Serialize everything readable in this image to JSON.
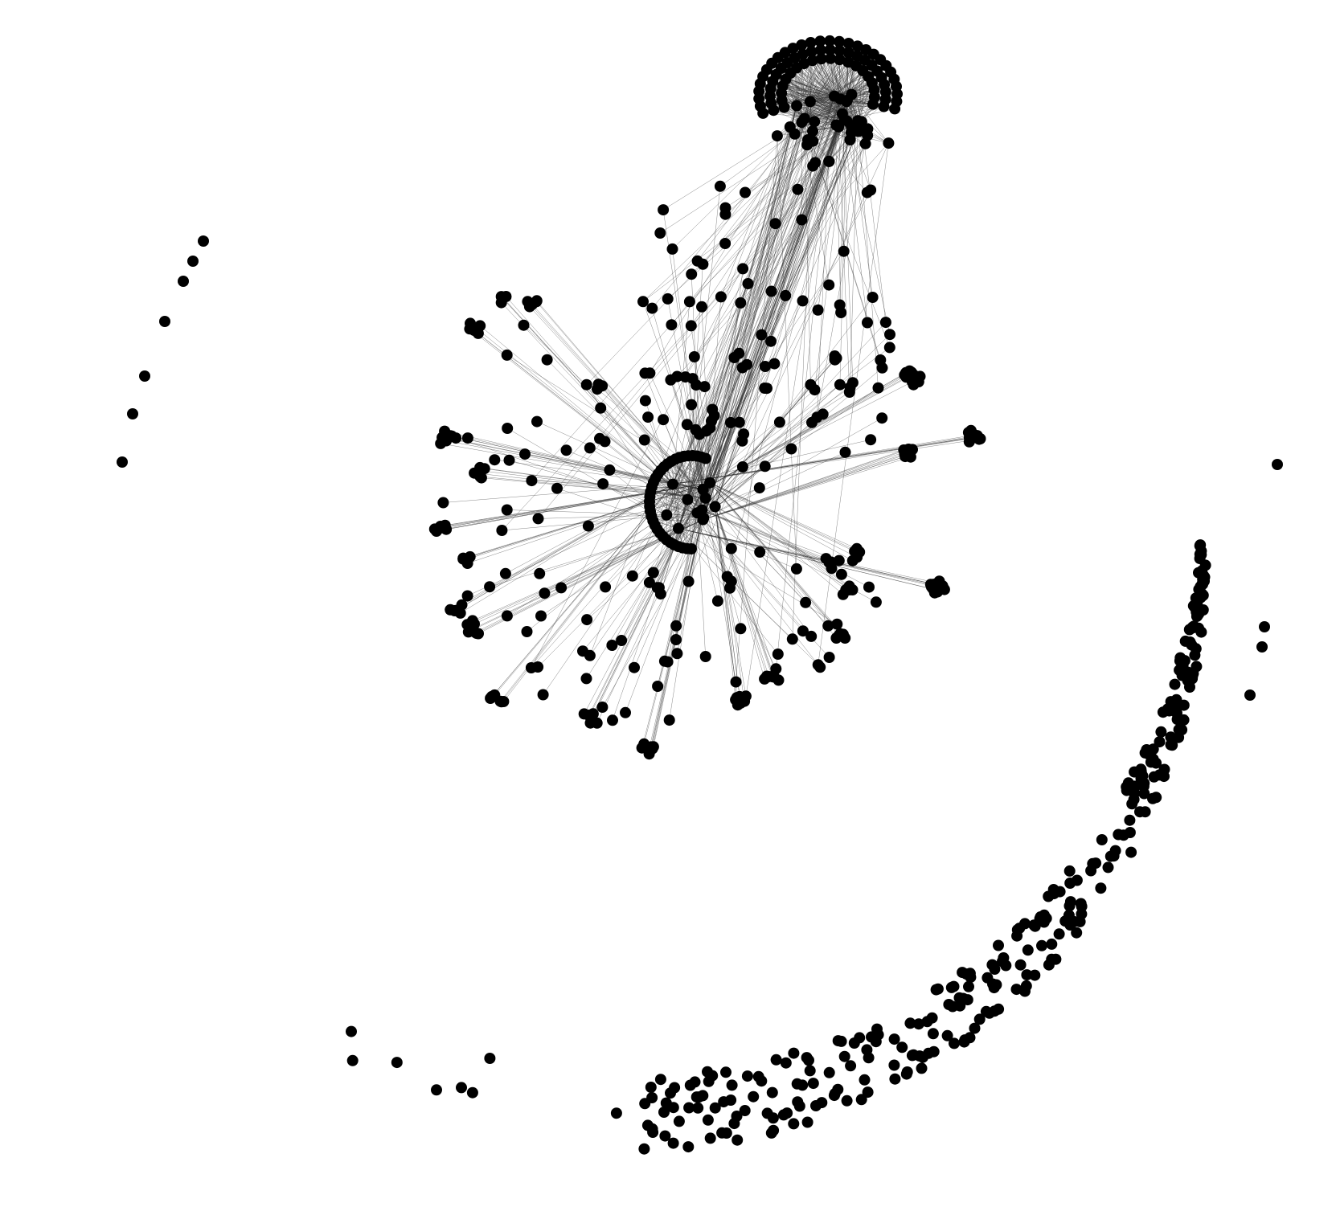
{
  "diagram": {
    "type": "network-graph",
    "background_color": "#ffffff",
    "node_color": "#000000",
    "edge_color": "#333333",
    "has_labels": false,
    "components": [
      {
        "name": "upper-hub-fan-cluster",
        "description_visible": false
      },
      {
        "name": "central-hub-cluster",
        "description_visible": false
      },
      {
        "name": "isolated-node-ring",
        "description_visible": false
      }
    ]
  }
}
